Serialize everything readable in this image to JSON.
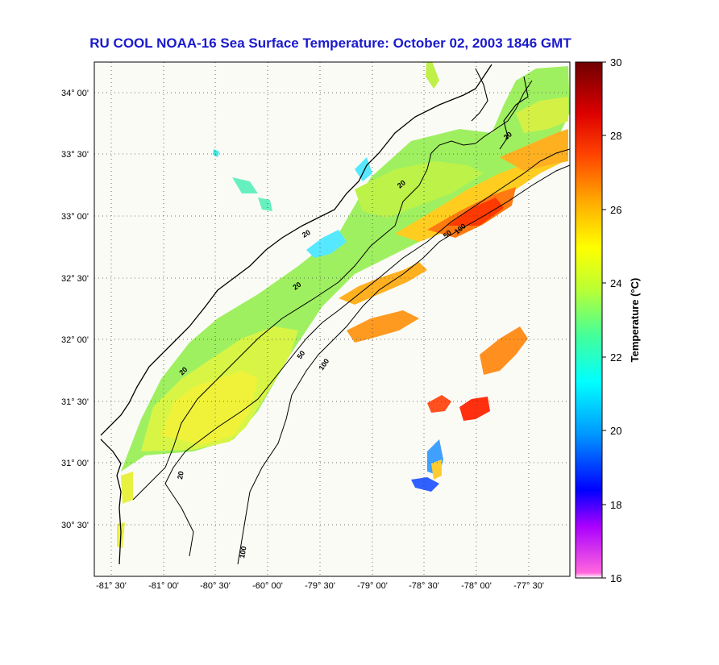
{
  "title": "RU COOL  NOAA-16  Sea Surface Temperature:  October 02, 2003 1846 GMT",
  "map": {
    "lat_labels": [
      "34° 00'",
      "33° 30'",
      "33° 00'",
      "32° 30'",
      "32° 00'",
      "31° 30'",
      "31° 00'",
      "30° 30'"
    ],
    "lon_labels": [
      "-81° 30'",
      "-81° 00'",
      "-80° 30'",
      "-60° 00'",
      "-79° 30'",
      "-79° 00'",
      "-78° 30'",
      "-78° 00'",
      "-77° 30'"
    ],
    "contour_labels": [
      "20",
      "20",
      "20",
      "20",
      "20",
      "20",
      "50",
      "50",
      "100",
      "100",
      "100"
    ],
    "colors": {
      "land": "#fbfbf6",
      "frame": "#000000",
      "grid": "#333333"
    }
  },
  "colorbar": {
    "label": "Temperature (°C)",
    "ticks": [
      "30",
      "28",
      "26",
      "24",
      "22",
      "20",
      "18",
      "16"
    ],
    "min": 16,
    "max": 30,
    "stops": [
      "#ff66dd",
      "#8800ff",
      "#0000ff",
      "#0099ff",
      "#00ffff",
      "#66ff99",
      "#ccff33",
      "#ffff00",
      "#ffaa00",
      "#ff4400",
      "#cc0000",
      "#7a0000"
    ]
  }
}
